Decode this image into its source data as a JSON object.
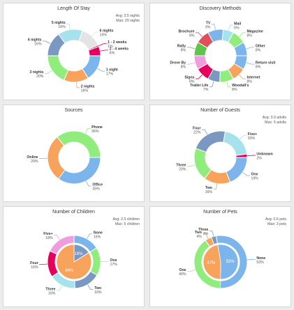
{
  "chart_data": [
    {
      "type": "donut",
      "title": "Length Of Stay",
      "stats": [
        "Avg: 3.5 nights",
        "Max: 20 nights"
      ],
      "series": [
        {
          "label": "1 night",
          "value": 17,
          "pct": "17%",
          "color": "#7cb5ec"
        },
        {
          "label": "2 nights",
          "value": 16,
          "pct": "16%",
          "color": "#f7a35c"
        },
        {
          "label": "3 nights",
          "value": 20,
          "pct": "20%",
          "color": "#90ed7d"
        },
        {
          "label": "4 nights",
          "value": 16,
          "pct": "16%",
          "color": "#7b98c3"
        },
        {
          "label": "5 nights",
          "value": 16,
          "pct": "16%",
          "color": "#a6e2ec"
        },
        {
          "label": "6 nights",
          "value": 14,
          "pct": "14%",
          "color": "#e4e4e4"
        },
        {
          "label": "1 - 2 weeks",
          "value": 1,
          "pct": "1%",
          "color": "#e4005b"
        },
        {
          "label": "2 - 4 weeks",
          "value": 6,
          "pct": "6%",
          "color": "#e4005b"
        }
      ]
    },
    {
      "type": "donut",
      "title": "Discovery Methods",
      "stats": [],
      "series": [
        {
          "label": "Return visit",
          "value": 8,
          "pct": "8%",
          "color": "#7cb5ec"
        },
        {
          "label": "Internet",
          "value": 8,
          "pct": "8%",
          "color": "#f7a35c"
        },
        {
          "label": "Woodall's",
          "value": 8,
          "pct": "8%",
          "color": "#90ed7d"
        },
        {
          "label": "Trailer Life",
          "value": 7,
          "pct": "7%",
          "color": "#7b98c3"
        },
        {
          "label": "Signs",
          "value": 8,
          "pct": "8%",
          "color": "#e4005b"
        },
        {
          "label": "Drove By",
          "value": 8,
          "pct": "8%",
          "color": "#f09ddf"
        },
        {
          "label": "Rally",
          "value": 8,
          "pct": "8%",
          "color": "#5ec44a"
        },
        {
          "label": "Brochure",
          "value": 8,
          "pct": "8%",
          "color": "#e0505a"
        },
        {
          "label": "TV",
          "value": 9,
          "pct": "9%",
          "color": "#7cb5ec"
        },
        {
          "label": "Mail",
          "value": 6,
          "pct": "6%",
          "color": "#a6e2ec"
        },
        {
          "label": "Magazine",
          "value": 8,
          "pct": "8%",
          "color": "#90ed7d"
        },
        {
          "label": "Other",
          "value": 8,
          "pct": "8%",
          "color": "#7cb5ec"
        }
      ]
    },
    {
      "type": "donut",
      "title": "Sources",
      "stats": [],
      "series": [
        {
          "label": "Office",
          "value": 35,
          "pct": "35%",
          "color": "#7cb5ec"
        },
        {
          "label": "Online",
          "value": 29,
          "pct": "29%",
          "color": "#f7a35c"
        },
        {
          "label": "Phone",
          "value": 36,
          "pct": "36%",
          "color": "#90ed7d"
        }
      ]
    },
    {
      "type": "donut",
      "title": "Number of Guests",
      "stats": [
        "Avg: 3.0 adults",
        "Max: 5 adults"
      ],
      "series": [
        {
          "label": "One",
          "value": 19,
          "pct": "19%",
          "color": "#7cb5ec"
        },
        {
          "label": "Two",
          "value": 16,
          "pct": "16%",
          "color": "#f7a35c"
        },
        {
          "label": "Three",
          "value": 20,
          "pct": "20%",
          "color": "#90ed7d"
        },
        {
          "label": "Four",
          "value": 22,
          "pct": "22%",
          "color": "#7b98c3"
        },
        {
          "label": "Five+",
          "value": 20,
          "pct": "20%",
          "color": "#a6e2ec"
        },
        {
          "label": "Unknown",
          "value": 2,
          "pct": "2%",
          "color": "#e4005b"
        }
      ]
    },
    {
      "type": "donut",
      "title": "Number of Children",
      "stats": [
        "Avg: 2.5 children",
        "Max: 5 children"
      ],
      "inner": {
        "values": [
          16,
          84
        ],
        "labels": [
          "16%",
          "84%"
        ],
        "colors": [
          "#7b98c3",
          "#f7a35c"
        ]
      },
      "series": [
        {
          "label": "None",
          "value": 16,
          "pct": "16%",
          "color": "#7cb5ec"
        },
        {
          "label": "One",
          "value": 17,
          "pct": "17%",
          "color": "#90ed7d"
        },
        {
          "label": "Two",
          "value": 16,
          "pct": "16%",
          "color": "#7b98c3"
        },
        {
          "label": "Three",
          "value": 16,
          "pct": "16%",
          "color": "#a6e2ec"
        },
        {
          "label": "Four",
          "value": 16,
          "pct": "16%",
          "color": "#e4005b"
        },
        {
          "label": "Five+",
          "value": 18,
          "pct": "18%",
          "color": "#f09ddf"
        }
      ]
    },
    {
      "type": "donut",
      "title": "Number of Pets",
      "stats": [
        "Avg: 0.6 pets",
        "Max: 3 pets"
      ],
      "inner": {
        "values": [
          53,
          47
        ],
        "labels": [
          "53%",
          "47%"
        ],
        "colors": [
          "#7cb5ec",
          "#f7a35c"
        ]
      },
      "series": [
        {
          "label": "None",
          "value": 53,
          "pct": "53%",
          "color": "#7cb5ec"
        },
        {
          "label": "One",
          "value": 40,
          "pct": "40%",
          "color": "#90ed7d"
        },
        {
          "label": "Two",
          "value": 4,
          "pct": "4%",
          "color": "#f7a35c"
        },
        {
          "label": "Three",
          "value": 3,
          "pct": "3%",
          "color": "#7b98c3"
        }
      ]
    }
  ]
}
